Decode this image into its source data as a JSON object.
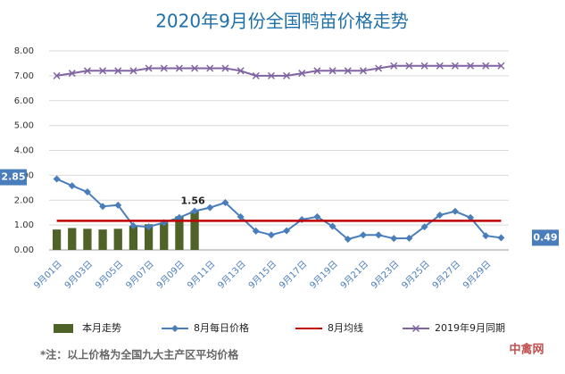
{
  "chart_data": {
    "type": "combo",
    "title": "2020年9月份全国鸭苗价格走势",
    "categories": [
      "9月01日",
      null,
      "9月03日",
      null,
      "9月05日",
      null,
      "9月07日",
      null,
      "9月09日",
      null,
      "9月11日",
      null,
      "9月13日",
      null,
      "9月15日",
      null,
      "9月17日",
      null,
      "9月19日",
      null,
      "9月21日",
      null,
      "9月23日",
      null,
      "9月25日",
      null,
      "9月27日",
      null,
      "9月29日",
      null
    ],
    "ylim": [
      0,
      8
    ],
    "yticks": [
      {
        "value": 0,
        "label": "0.00"
      },
      {
        "value": 1,
        "label": "1.00"
      },
      {
        "value": 2,
        "label": "2.00"
      },
      {
        "value": 3,
        "label": "3.00"
      },
      {
        "value": 4,
        "label": "4.00"
      },
      {
        "value": 5,
        "label": "5.00"
      },
      {
        "value": 6,
        "label": "6.00"
      },
      {
        "value": 7,
        "label": "7.00"
      },
      {
        "value": 8,
        "label": "8.00"
      }
    ],
    "grid": true,
    "legend": "bottom",
    "series": [
      {
        "name": "本月走势",
        "type": "bar",
        "color": "#4f6228",
        "values": [
          0.82,
          0.88,
          0.85,
          0.82,
          0.85,
          0.97,
          1.03,
          1.1,
          1.35,
          1.56,
          null,
          null,
          null,
          null,
          null,
          null,
          null,
          null,
          null,
          null,
          null,
          null,
          null,
          null,
          null,
          null,
          null,
          null,
          null,
          null
        ]
      },
      {
        "name": "8月每日价格",
        "type": "line",
        "marker": "diamond",
        "color": "#4a7ebb",
        "values": [
          2.85,
          2.58,
          2.33,
          1.75,
          1.8,
          0.97,
          0.93,
          1.1,
          1.3,
          1.56,
          1.7,
          1.9,
          1.33,
          0.76,
          0.6,
          0.77,
          1.22,
          1.33,
          0.95,
          0.43,
          0.6,
          0.6,
          0.46,
          0.47,
          0.93,
          1.4,
          1.55,
          1.3,
          0.57,
          0.49
        ],
        "value_labels": [
          "2.85",
          null,
          null,
          null,
          null,
          null,
          null,
          null,
          null,
          "1.56",
          null,
          null,
          null,
          null,
          null,
          null,
          null,
          null,
          null,
          null,
          null,
          null,
          null,
          null,
          null,
          null,
          null,
          null,
          null,
          "0.49"
        ]
      },
      {
        "name": "8月均线",
        "type": "line",
        "marker": "none",
        "color": "#c00000",
        "values": [
          1.17,
          1.17,
          1.17,
          1.17,
          1.17,
          1.17,
          1.17,
          1.17,
          1.17,
          1.17,
          1.17,
          1.17,
          1.17,
          1.17,
          1.17,
          1.17,
          1.17,
          1.17,
          1.17,
          1.17,
          1.17,
          1.17,
          1.17,
          1.17,
          1.17,
          1.17,
          1.17,
          1.17,
          1.17,
          1.17
        ]
      },
      {
        "name": "2019年9月同期",
        "type": "line",
        "marker": "x",
        "color": "#8064a2",
        "values": [
          7.0,
          7.1,
          7.2,
          7.2,
          7.2,
          7.2,
          7.3,
          7.3,
          7.3,
          7.3,
          7.3,
          7.3,
          7.2,
          7.0,
          7.0,
          7.0,
          7.1,
          7.2,
          7.2,
          7.2,
          7.2,
          7.3,
          7.4,
          7.4,
          7.4,
          7.4,
          7.4,
          7.4,
          7.4,
          7.4
        ]
      }
    ],
    "note": "*注：以上价格为全国九大主产区平均价格",
    "watermark": "中禽网"
  }
}
